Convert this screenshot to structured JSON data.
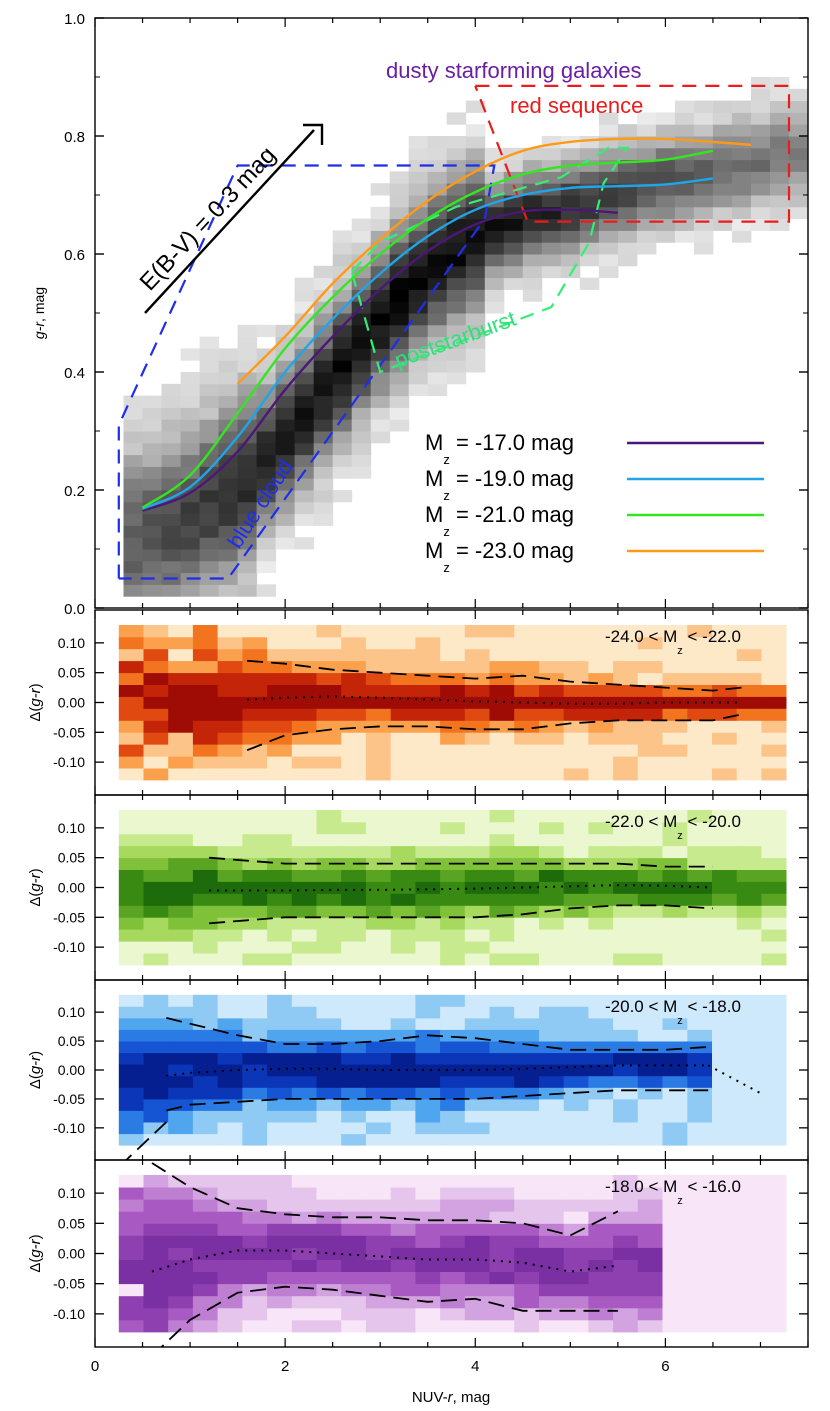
{
  "chart_data": [
    {
      "type": "line",
      "panel": "main",
      "xlabel": "NUV-r, mag",
      "ylabel": "g-r, mag",
      "xlim": [
        0,
        7.5
      ],
      "ylim": [
        0,
        1.0
      ],
      "xticks": [
        "0",
        "2",
        "4",
        "6"
      ],
      "yticks": [
        "0.0",
        "0.2",
        "0.4",
        "0.6",
        "0.8",
        "1.0"
      ],
      "background": "grayscale 2D density histogram of galaxies",
      "series": [
        {
          "name": "M_z = -17.0 mag",
          "color": "#4b1778",
          "x": [
            0.5,
            1.0,
            1.5,
            2.0,
            2.5,
            3.0,
            3.5,
            4.0,
            4.5,
            5.0,
            5.5
          ],
          "y": [
            0.165,
            0.195,
            0.265,
            0.37,
            0.46,
            0.54,
            0.605,
            0.65,
            0.672,
            0.675,
            0.67
          ]
        },
        {
          "name": "M_z = -19.0 mag",
          "color": "#1fa5e8",
          "x": [
            0.5,
            1.0,
            1.5,
            2.0,
            2.5,
            3.0,
            3.5,
            4.0,
            4.5,
            5.0,
            5.5,
            6.0,
            6.5
          ],
          "y": [
            0.168,
            0.205,
            0.29,
            0.4,
            0.49,
            0.567,
            0.63,
            0.675,
            0.7,
            0.712,
            0.715,
            0.718,
            0.728
          ]
        },
        {
          "name": "M_z = -21.0 mag",
          "color": "#35e522",
          "x": [
            0.5,
            1.0,
            1.5,
            2.0,
            2.5,
            3.0,
            3.5,
            4.0,
            4.5,
            5.0,
            5.5,
            6.0,
            6.5
          ],
          "y": [
            0.17,
            0.225,
            0.33,
            0.44,
            0.527,
            0.6,
            0.66,
            0.705,
            0.735,
            0.75,
            0.755,
            0.76,
            0.775
          ]
        },
        {
          "name": "M_z = -23.0 mag",
          "color": "#ff9a17",
          "x": [
            1.5,
            2.0,
            2.5,
            3.0,
            3.5,
            4.0,
            4.5,
            5.0,
            5.5,
            6.0,
            6.5,
            6.9
          ],
          "y": [
            0.38,
            0.46,
            0.55,
            0.625,
            0.69,
            0.74,
            0.775,
            0.79,
            0.795,
            0.795,
            0.79,
            0.785
          ]
        }
      ],
      "regions": [
        {
          "label": "blue cloud",
          "color": "#1f2ee8",
          "x": [
            0.25,
            0.25,
            1.5,
            4.2,
            4.1,
            1.4,
            0.25
          ],
          "y": [
            0.05,
            0.31,
            0.75,
            0.75,
            0.66,
            0.05,
            0.05
          ]
        },
        {
          "label": "red sequence",
          "color": "#ea1c1c",
          "x": [
            4.0,
            7.3,
            7.3,
            4.55,
            4.0
          ],
          "y": [
            0.885,
            0.885,
            0.655,
            0.655,
            0.885
          ]
        },
        {
          "label": "poststarburst",
          "color": "#33ef74",
          "x": [
            2.7,
            3.0,
            3.8,
            4.9,
            5.4,
            5.6,
            5.35,
            5.2,
            4.8,
            3.0,
            2.7
          ],
          "y": [
            0.57,
            0.62,
            0.68,
            0.73,
            0.78,
            0.78,
            0.72,
            0.62,
            0.51,
            0.4,
            0.57
          ]
        }
      ],
      "annotations": [
        {
          "text": "dusty starforming galaxies",
          "color": "#6a1fa3"
        },
        {
          "text": "red sequence",
          "color": "#ea1c1c"
        },
        {
          "text": "poststarburst",
          "color": "#2fe07c"
        },
        {
          "text": "blue cloud",
          "color": "#1f2ee8"
        },
        {
          "text": "E(B-V) = 0.3 mag",
          "color": "#000000",
          "arrow": {
            "from": [
              0.5,
              0.5
            ],
            "to": [
              2.35,
              0.805
            ]
          }
        }
      ],
      "legend_position": "lower-right"
    },
    {
      "type": "heatmap",
      "panel": "residual-1",
      "title": "-24.0 < M_z < -22.0",
      "ylabel": "Δ(g-r)",
      "ylim": [
        -0.14,
        0.14
      ],
      "yticks": [
        "0.10",
        "0.05",
        "0.00",
        "-0.05",
        "-0.10"
      ],
      "colormap": "orange",
      "x": [
        1.6,
        2.0,
        2.5,
        3.0,
        3.5,
        4.0,
        4.5,
        5.0,
        5.5,
        6.0,
        6.5,
        6.8
      ],
      "upper": [
        0.07,
        0.065,
        0.055,
        0.05,
        0.045,
        0.04,
        0.045,
        0.035,
        0.03,
        0.025,
        0.02,
        0.025
      ],
      "median": [
        0.005,
        0.008,
        0.01,
        0.008,
        0.005,
        0.002,
        0.0,
        -0.002,
        -0.002,
        0.0,
        0.0,
        0.0
      ],
      "lower": [
        -0.08,
        -0.055,
        -0.045,
        -0.04,
        -0.04,
        -0.045,
        -0.045,
        -0.035,
        -0.03,
        -0.03,
        -0.03,
        -0.02
      ]
    },
    {
      "type": "heatmap",
      "panel": "residual-2",
      "title": "-22.0 < M_z < -20.0",
      "ylabel": "Δ(g-r)",
      "ylim": [
        -0.14,
        0.14
      ],
      "yticks": [
        "0.10",
        "0.05",
        "0.00",
        "-0.05",
        "-0.10"
      ],
      "colormap": "green",
      "x": [
        1.2,
        1.6,
        2.0,
        2.5,
        3.0,
        3.5,
        4.0,
        4.5,
        5.0,
        5.5,
        6.0,
        6.5
      ],
      "upper": [
        0.05,
        0.045,
        0.04,
        0.04,
        0.04,
        0.04,
        0.04,
        0.04,
        0.04,
        0.04,
        0.035,
        0.035
      ],
      "median": [
        -0.005,
        -0.005,
        -0.005,
        -0.004,
        -0.004,
        -0.003,
        -0.002,
        0.0,
        0.002,
        0.004,
        0.003,
        0.0
      ],
      "lower": [
        -0.06,
        -0.055,
        -0.05,
        -0.05,
        -0.05,
        -0.05,
        -0.05,
        -0.045,
        -0.035,
        -0.03,
        -0.03,
        -0.035
      ]
    },
    {
      "type": "heatmap",
      "panel": "residual-3",
      "title": "-20.0 < M_z < -18.0",
      "ylabel": "Δ(g-r)",
      "ylim": [
        -0.14,
        0.14
      ],
      "yticks": [
        "0.10",
        "0.05",
        "0.00",
        "-0.05",
        "-0.10"
      ],
      "colormap": "blue",
      "x": [
        0.75,
        1.0,
        1.5,
        2.0,
        2.5,
        3.0,
        3.5,
        4.0,
        4.5,
        5.0,
        5.5,
        6.0,
        6.45
      ],
      "upper": [
        0.09,
        0.08,
        0.06,
        0.045,
        0.045,
        0.05,
        0.06,
        0.055,
        0.045,
        0.035,
        0.035,
        0.035,
        0.04
      ],
      "median": [
        -0.01,
        -0.005,
        0.0,
        0.002,
        0.002,
        0.0,
        0.0,
        0.0,
        0.002,
        0.005,
        0.008,
        0.008,
        0.008
      ],
      "lower": [
        -0.07,
        -0.06,
        -0.055,
        -0.05,
        -0.05,
        -0.05,
        -0.05,
        -0.05,
        -0.045,
        -0.04,
        -0.035,
        -0.035,
        -0.035
      ],
      "lower_extension": {
        "x": [
          0.75,
          0.3
        ],
        "y": [
          -0.09,
          -0.16
        ]
      },
      "median_extension": {
        "x": [
          6.45,
          7.0
        ],
        "y": [
          0.008,
          -0.04
        ]
      }
    },
    {
      "type": "heatmap",
      "panel": "residual-4",
      "title": "-18.0 < M_z < -16.0",
      "ylabel": "Δ(g-r)",
      "xlabel": "NUV-r, mag",
      "ylim": [
        -0.14,
        0.14
      ],
      "yticks": [
        "0.10",
        "0.05",
        "0.00",
        "-0.05",
        "-0.10"
      ],
      "xticks": [
        "0",
        "2",
        "4",
        "6"
      ],
      "colormap": "purple",
      "x": [
        0.6,
        1.0,
        1.5,
        2.0,
        2.5,
        3.0,
        3.5,
        4.0,
        4.5,
        5.0,
        5.5
      ],
      "upper": [
        0.15,
        0.11,
        0.075,
        0.065,
        0.06,
        0.06,
        0.055,
        0.055,
        0.05,
        0.03,
        0.07
      ],
      "median": [
        -0.03,
        -0.01,
        0.005,
        0.005,
        0.0,
        -0.005,
        -0.01,
        -0.01,
        -0.015,
        -0.03,
        -0.02
      ],
      "lower": [
        -0.17,
        -0.11,
        -0.065,
        -0.055,
        -0.06,
        -0.07,
        -0.08,
        -0.075,
        -0.095,
        -0.095,
        -0.095
      ]
    }
  ],
  "legend": {
    "items": [
      {
        "main": "M",
        "sub": "z",
        "rest": " = -17.0 mag",
        "color": "#4b1778"
      },
      {
        "main": "M",
        "sub": "z",
        "rest": " = -19.0 mag",
        "color": "#1fa5e8"
      },
      {
        "main": "M",
        "sub": "z",
        "rest": " = -21.0 mag",
        "color": "#35e522"
      },
      {
        "main": "M",
        "sub": "z",
        "rest": " = -23.0 mag",
        "color": "#ff9a17"
      }
    ]
  },
  "panel_titles": [
    {
      "pre": "-24.0 < M",
      "sub": "z",
      "post": " < -22.0"
    },
    {
      "pre": "-22.0 < M",
      "sub": "z",
      "post": " < -20.0"
    },
    {
      "pre": "-20.0 < M",
      "sub": "z",
      "post": " < -18.0"
    },
    {
      "pre": "-18.0 < M",
      "sub": "z",
      "post": " < -16.0"
    }
  ],
  "colors": {
    "orange": [
      "#fde8c7",
      "#fdc48a",
      "#fba14d",
      "#f2741f",
      "#e04a10",
      "#c42508",
      "#9e0c05"
    ],
    "green": [
      "#eaf7cf",
      "#c8ea8e",
      "#a6d95e",
      "#7fc23a",
      "#59a422",
      "#388a12",
      "#1d6b0a"
    ],
    "blue": [
      "#cde9fb",
      "#8fcaf5",
      "#4fa6ef",
      "#2a7be3",
      "#1555d3",
      "#0c36b8",
      "#061f90"
    ],
    "purple": [
      "#f8e6f8",
      "#e6c5ec",
      "#d3a2e0",
      "#be7fd3",
      "#a85ac2",
      "#8e3fb0",
      "#7a2fa3"
    ]
  }
}
